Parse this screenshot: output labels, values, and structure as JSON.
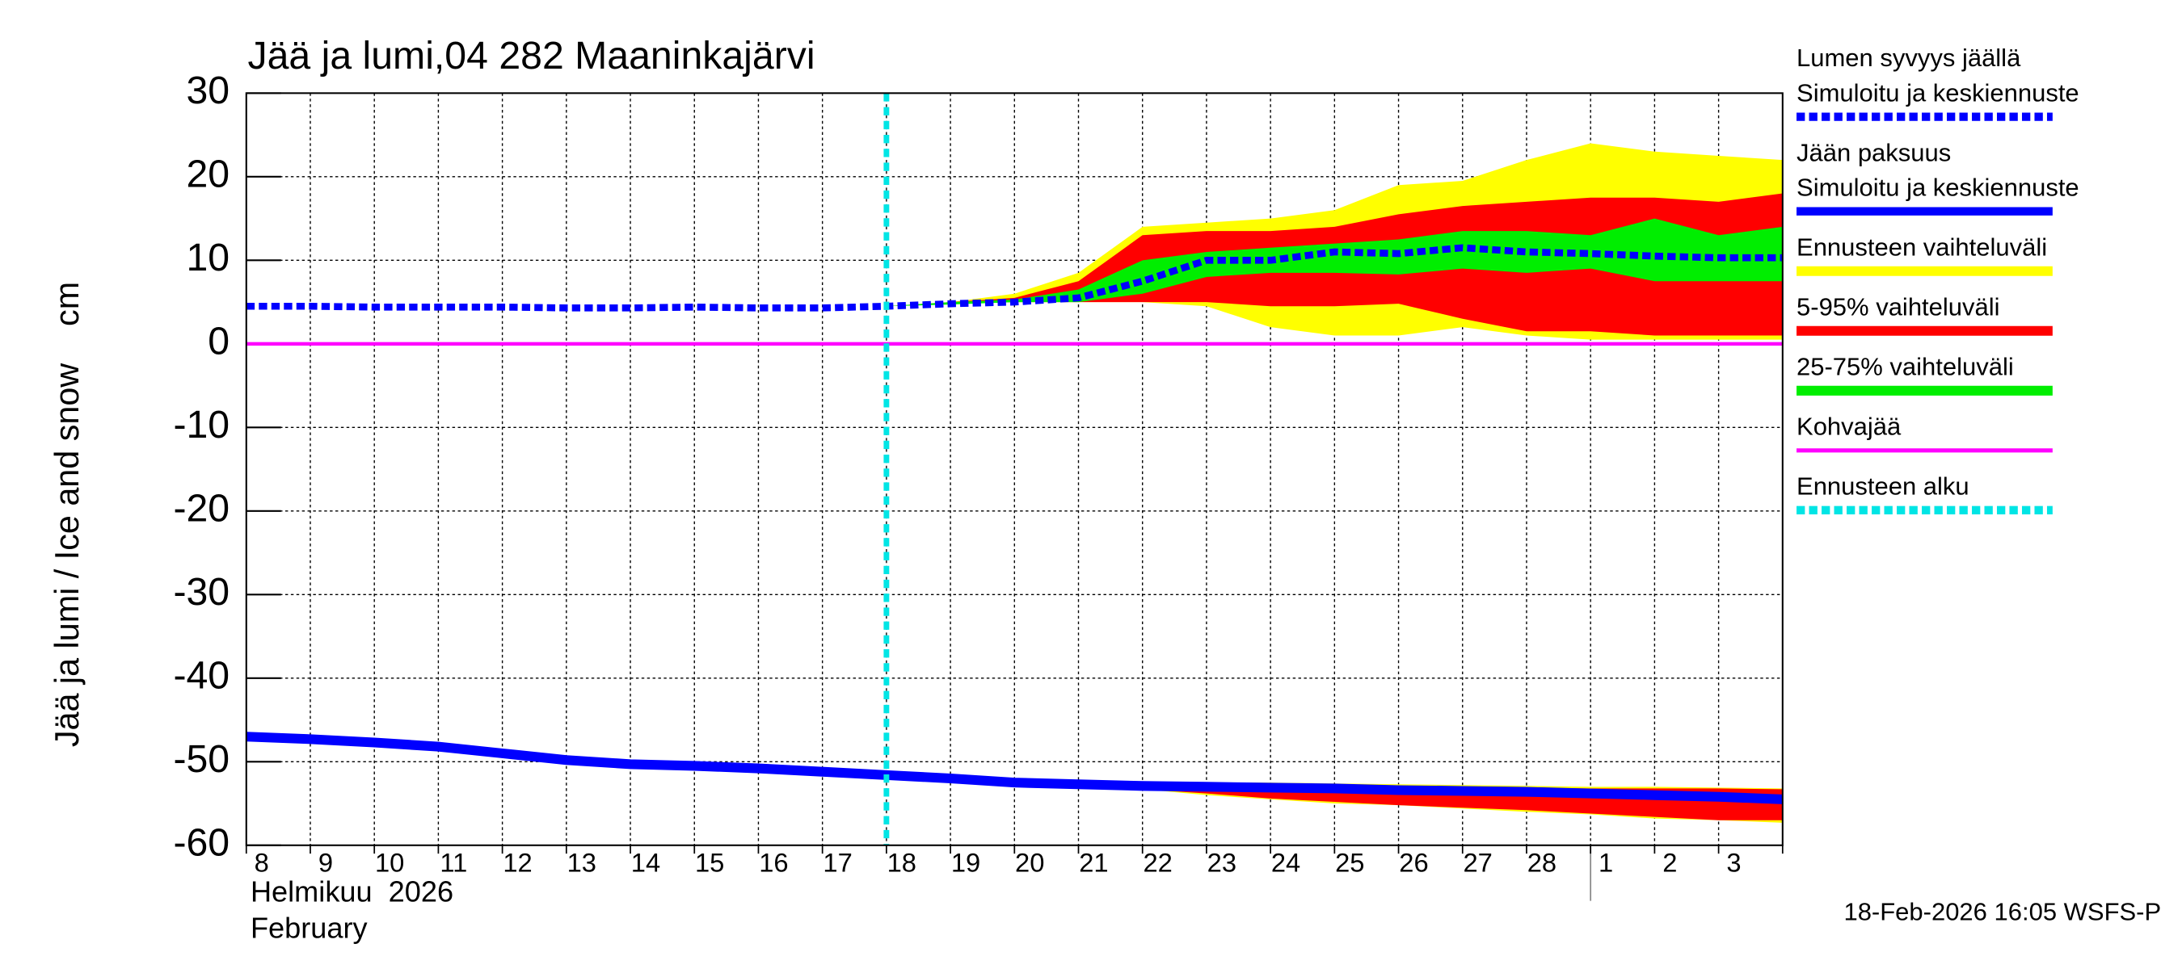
{
  "chart_data": {
    "type": "line",
    "title": "Jää ja lumi,04 282 Maaninkajärvi",
    "y_label": "Jää ja lumi / Ice and snow    cm",
    "ylim": [
      -60,
      30
    ],
    "yticks": [
      -60,
      -50,
      -40,
      -30,
      -20,
      -10,
      0,
      10,
      20,
      30
    ],
    "grid": true,
    "categories": [
      "8",
      "9",
      "10",
      "11",
      "12",
      "13",
      "14",
      "15",
      "16",
      "17",
      "18",
      "19",
      "20",
      "21",
      "22",
      "23",
      "24",
      "25",
      "26",
      "27",
      "28",
      "1",
      "2",
      "3",
      null
    ],
    "month_labels": [
      "Helmikuu  2026",
      "February"
    ],
    "timestamp": "18-Feb-2026 16:05 WSFS-P",
    "series": [
      {
        "name": "Lumen syvyys jäällä",
        "subname": "Simuloitu ja keskiennuste",
        "color": "#0000ff",
        "dashed": true,
        "values": [
          4.5,
          4.5,
          4.4,
          4.4,
          4.4,
          4.3,
          4.3,
          4.4,
          4.3,
          4.3,
          4.5,
          4.8,
          5,
          5.5,
          7.5,
          10,
          10,
          11,
          10.8,
          11.5,
          11,
          10.8,
          10.5,
          10.3,
          10.3
        ]
      },
      {
        "name": "Jään paksuus",
        "subname": "Simuloitu ja keskiennuste",
        "color": "#0000ff",
        "dashed": false,
        "values": [
          -47,
          -47.3,
          -47.7,
          -48.2,
          -49,
          -49.8,
          -50.3,
          -50.5,
          -50.8,
          -51.2,
          -51.6,
          -52,
          -52.5,
          -52.7,
          -52.9,
          -53,
          -53.1,
          -53.2,
          -53.4,
          -53.5,
          -53.6,
          -53.8,
          -54,
          -54.2,
          -54.5
        ]
      },
      {
        "name": "Ennusteen vaihteluväli",
        "color": "#ffff00",
        "upper": [
          null,
          null,
          null,
          null,
          null,
          null,
          null,
          null,
          null,
          null,
          4.5,
          5,
          6,
          8.5,
          14,
          14.5,
          15,
          16,
          19,
          19.5,
          22,
          24,
          23,
          22.5,
          22
        ],
        "lower": [
          null,
          null,
          null,
          null,
          null,
          null,
          null,
          null,
          null,
          null,
          4.5,
          4.8,
          5,
          5,
          5,
          4.5,
          2,
          1,
          1,
          2,
          1,
          0.5,
          0.5,
          0.5,
          0.5
        ],
        "ice_upper": [
          null,
          null,
          null,
          null,
          null,
          null,
          null,
          null,
          null,
          null,
          -51.6,
          -52,
          -52.3,
          -52.3,
          -52.4,
          -52.5,
          -52.5,
          -52.6,
          -52.7,
          -52.8,
          -52.9,
          -53,
          -53,
          -53.1,
          -53.2
        ],
        "ice_lower": [
          null,
          null,
          null,
          null,
          null,
          null,
          null,
          null,
          null,
          null,
          -51.6,
          -52,
          -52.6,
          -53,
          -53.3,
          -54,
          -54.5,
          -55,
          -55.2,
          -55.6,
          -56,
          -56.3,
          -56.8,
          -57,
          -57.3
        ]
      },
      {
        "name": "5-95% vaihteluväli",
        "color": "#ff0000",
        "upper": [
          null,
          null,
          null,
          null,
          null,
          null,
          null,
          null,
          null,
          null,
          4.5,
          5,
          5.5,
          7.5,
          13,
          13.5,
          13.5,
          14,
          15.5,
          16.5,
          17,
          17.5,
          17.5,
          17,
          18
        ],
        "lower": [
          null,
          null,
          null,
          null,
          null,
          null,
          null,
          null,
          null,
          null,
          4.5,
          4.8,
          5,
          5,
          5,
          5,
          4.5,
          4.5,
          4.8,
          3,
          1.5,
          1.5,
          1,
          1,
          1
        ],
        "ice_upper": [
          null,
          null,
          null,
          null,
          null,
          null,
          null,
          null,
          null,
          null,
          -51.6,
          -52,
          -52.4,
          -52.5,
          -52.6,
          -52.7,
          -52.8,
          -52.9,
          -53,
          -53,
          -53.1,
          -53.2,
          -53.2,
          -53.2,
          -53.3
        ],
        "ice_lower": [
          null,
          null,
          null,
          null,
          null,
          null,
          null,
          null,
          null,
          null,
          -51.6,
          -52,
          -52.6,
          -53,
          -53.3,
          -53.8,
          -54.4,
          -54.8,
          -55.2,
          -55.5,
          -55.8,
          -56.2,
          -56.6,
          -57,
          -57
        ]
      },
      {
        "name": "25-75% vaihteluväli",
        "color": "#00ee00",
        "upper": [
          null,
          null,
          null,
          null,
          null,
          null,
          null,
          null,
          null,
          null,
          4.5,
          5,
          5.3,
          6.5,
          10,
          11,
          11.5,
          12,
          12.5,
          13.5,
          13.5,
          13,
          15,
          13,
          14
        ],
        "lower": [
          null,
          null,
          null,
          null,
          null,
          null,
          null,
          null,
          null,
          null,
          4.5,
          4.7,
          5,
          5,
          6,
          8,
          8.5,
          8.5,
          8.3,
          9,
          8.5,
          9,
          7.5,
          7.5,
          7.5
        ]
      },
      {
        "name": "Kohvajää",
        "color": "#ff00ff",
        "values": [
          0,
          0,
          0,
          0,
          0,
          0,
          0,
          0,
          0,
          0,
          0,
          0,
          0,
          0,
          0,
          0,
          0,
          0,
          0,
          0,
          0,
          0,
          0,
          0,
          0
        ]
      },
      {
        "name": "Ennusteen alku",
        "color": "#00e5e5",
        "dashed": true,
        "category_index": 10
      }
    ]
  }
}
